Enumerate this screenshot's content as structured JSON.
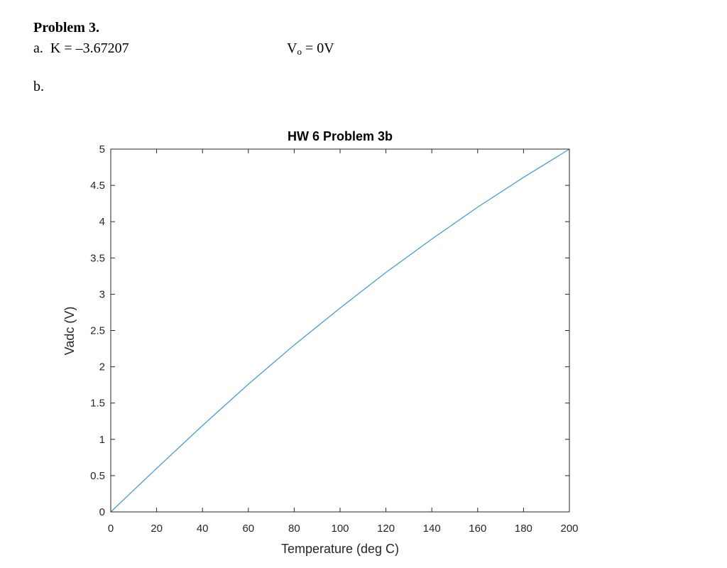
{
  "document": {
    "problem_title": "Problem 3.",
    "part_a_label": "a.",
    "part_a_value": "K = –3.67207",
    "vo_prefix": "V",
    "vo_subscript": "o",
    "vo_suffix": " = 0V",
    "part_b_label": "b."
  },
  "chart_data": {
    "type": "line",
    "title": "HW 6 Problem 3b",
    "xlabel": "Temperature (deg C)",
    "ylabel": "Vadc (V)",
    "xlim": [
      0,
      200
    ],
    "ylim": [
      0,
      5
    ],
    "xticks": [
      0,
      20,
      40,
      60,
      80,
      100,
      120,
      140,
      160,
      180,
      200
    ],
    "yticks": [
      0,
      0.5,
      1,
      1.5,
      2,
      2.5,
      3,
      3.5,
      4,
      4.5,
      5
    ],
    "xtick_labels": [
      "0",
      "20",
      "40",
      "60",
      "80",
      "100",
      "120",
      "140",
      "160",
      "180",
      "200"
    ],
    "ytick_labels": [
      "0",
      "0.5",
      "1",
      "1.5",
      "2",
      "2.5",
      "3",
      "3.5",
      "4",
      "4.5",
      "5"
    ],
    "grid": false,
    "series": [
      {
        "color": "#4a9ad8",
        "x": [
          0,
          20,
          40,
          60,
          80,
          100,
          120,
          140,
          160,
          180,
          200
        ],
        "y": [
          0,
          0.6,
          1.19,
          1.76,
          2.3,
          2.81,
          3.3,
          3.76,
          4.2,
          4.61,
          5.0
        ]
      }
    ]
  }
}
